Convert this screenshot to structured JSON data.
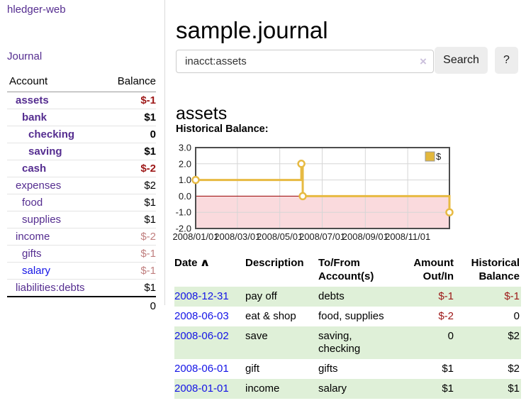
{
  "app": {
    "brand": "hledger-web"
  },
  "sidebar": {
    "journal_link": "Journal",
    "accounts": {
      "header": {
        "account": "Account",
        "balance": "Balance"
      },
      "rows": [
        {
          "name": "assets",
          "depth": 0,
          "bold": true,
          "balance": "$-1",
          "balance_tone": "neg-strong",
          "link_tone": "purple"
        },
        {
          "name": "bank",
          "depth": 1,
          "bold": true,
          "balance": "$1",
          "balance_tone": "plain",
          "link_tone": "purple"
        },
        {
          "name": "checking",
          "depth": 2,
          "bold": true,
          "balance": "0",
          "balance_tone": "plain",
          "link_tone": "purple"
        },
        {
          "name": "saving",
          "depth": 2,
          "bold": true,
          "balance": "$1",
          "balance_tone": "plain",
          "link_tone": "purple"
        },
        {
          "name": "cash",
          "depth": 1,
          "bold": true,
          "balance": "$-2",
          "balance_tone": "neg-strong",
          "link_tone": "purple"
        },
        {
          "name": "expenses",
          "depth": 0,
          "bold": false,
          "balance": "$2",
          "balance_tone": "plain",
          "link_tone": "purple"
        },
        {
          "name": "food",
          "depth": 1,
          "bold": false,
          "balance": "$1",
          "balance_tone": "plain",
          "link_tone": "purple"
        },
        {
          "name": "supplies",
          "depth": 1,
          "bold": false,
          "balance": "$1",
          "balance_tone": "plain",
          "link_tone": "purple"
        },
        {
          "name": "income",
          "depth": 0,
          "bold": false,
          "balance": "$-2",
          "balance_tone": "neg-soft",
          "link_tone": "purple"
        },
        {
          "name": "gifts",
          "depth": 1,
          "bold": false,
          "balance": "$-1",
          "balance_tone": "neg-soft",
          "link_tone": "purple"
        },
        {
          "name": "salary",
          "depth": 1,
          "bold": false,
          "balance": "$-1",
          "balance_tone": "neg-soft",
          "link_tone": "blue"
        },
        {
          "name": "liabilities:debts",
          "depth": 0,
          "bold": false,
          "balance": "$1",
          "balance_tone": "plain",
          "link_tone": "purple"
        }
      ],
      "total": "0"
    }
  },
  "header": {
    "title": "sample.journal"
  },
  "search": {
    "query": "inacct:assets",
    "clear_icon": "×",
    "submit_label": "Search",
    "help_label": "?"
  },
  "account_view": {
    "title": "assets",
    "chart_heading": "Historical Balance:"
  },
  "chart_data": {
    "type": "line",
    "step": true,
    "title": "Historical Balance:",
    "series": [
      {
        "name": "$",
        "points": [
          [
            "2008-01-01",
            1
          ],
          [
            "2008-06-01",
            2
          ],
          [
            "2008-06-03",
            0
          ],
          [
            "2008-12-31",
            -1
          ]
        ]
      }
    ],
    "x_tick_labels": [
      "2008/01/01",
      "2008/03/01",
      "2008/05/01",
      "2008/07/01",
      "2008/09/01",
      "2008/11/01"
    ],
    "y_tick_labels": [
      "3.0",
      "2.0",
      "1.0",
      "0.0",
      "-1.0",
      "-2.0"
    ],
    "xlim": [
      "2008-01-01",
      "2008-12-31"
    ],
    "ylim": [
      -2,
      3
    ],
    "legend": {
      "label": "$",
      "position": "top-right"
    },
    "grid": true,
    "colors": {
      "line": "#e7ba42",
      "marker_fill": "#ffffff",
      "negative_region": "#fadadd",
      "zero_line": "#990000",
      "grid_line": "#d6d6d6",
      "frame": "#4d4d4d",
      "legend_box_fill": "#e3b83c",
      "legend_box_border": "#999999"
    }
  },
  "register": {
    "columns": [
      {
        "label": "Date",
        "align": "left",
        "sorted": "asc"
      },
      {
        "label": "Description",
        "align": "left"
      },
      {
        "label": "To/From Account(s)",
        "align": "left"
      },
      {
        "label": "Amount Out/In",
        "align": "right"
      },
      {
        "label": "Historical Balance",
        "align": "right"
      }
    ],
    "sort_icon": "∧",
    "rows": [
      {
        "date": "2008-12-31",
        "description": "pay off",
        "accounts": "debts",
        "amount": "$-1",
        "amount_neg": true,
        "balance": "$-1",
        "balance_neg": true,
        "highlight": true
      },
      {
        "date": "2008-06-03",
        "description": "eat & shop",
        "accounts": "food, supplies",
        "amount": "$-2",
        "amount_neg": true,
        "balance": "0",
        "balance_neg": false,
        "highlight": false
      },
      {
        "date": "2008-06-02",
        "description": "save",
        "accounts": "saving,\nchecking",
        "amount": "0",
        "amount_neg": false,
        "balance": "$2",
        "balance_neg": false,
        "highlight": true
      },
      {
        "date": "2008-06-01",
        "description": "gift",
        "accounts": "gifts",
        "amount": "$1",
        "amount_neg": false,
        "balance": "$2",
        "balance_neg": false,
        "highlight": false
      },
      {
        "date": "2008-01-01",
        "description": "income",
        "accounts": "salary",
        "amount": "$1",
        "amount_neg": false,
        "balance": "$1",
        "balance_neg": false,
        "highlight": true
      }
    ]
  },
  "colors": {
    "link_purple": "#552d90",
    "link_blue": "#1414e6",
    "negative_strong": "#9d1717",
    "negative_soft": "#c07f7f",
    "row_highlight": "#dff0d8"
  }
}
